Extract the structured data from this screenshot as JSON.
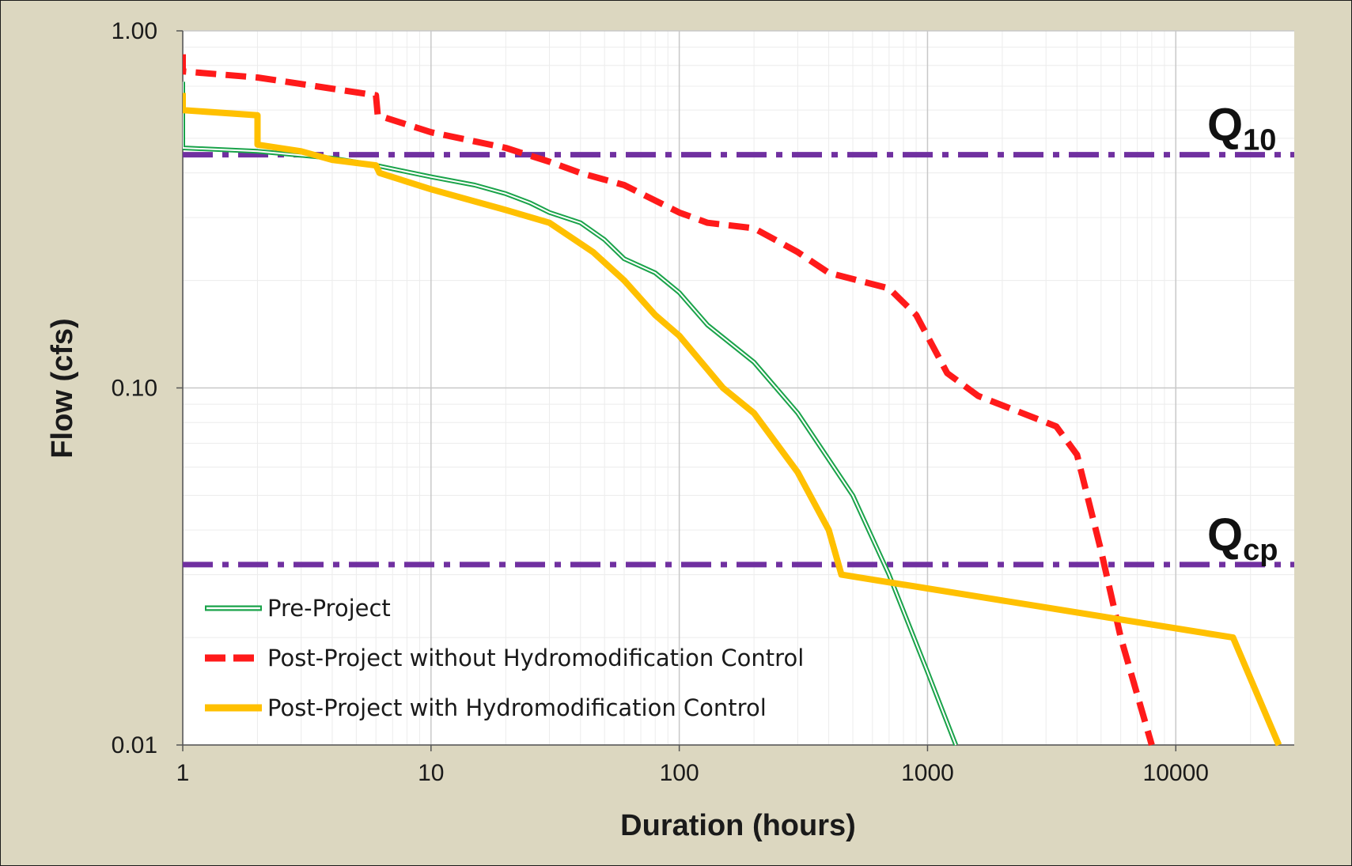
{
  "chart_data": {
    "type": "line",
    "xscale": "log",
    "yscale": "log",
    "xlim": [
      1,
      30000
    ],
    "ylim": [
      0.01,
      1.0
    ],
    "xlabel": "Duration (hours)",
    "ylabel": "Flow (cfs)",
    "x_ticks": [
      "1",
      "10",
      "100",
      "1000",
      "10000"
    ],
    "y_ticks": [
      "0.01",
      "0.10",
      "1.00"
    ],
    "grid": true,
    "legend_position": "bottom-left",
    "reference_lines": [
      {
        "name": "Q",
        "subscript": "10",
        "y": 0.45,
        "color": "#7030a0",
        "style": "dash-dot"
      },
      {
        "name": "Q",
        "subscript": "cp",
        "y": 0.032,
        "color": "#7030a0",
        "style": "dash-dot"
      }
    ],
    "series": [
      {
        "name": "Pre-Project",
        "color": "#1aa34a",
        "style": "double",
        "points": [
          [
            1,
            0.72
          ],
          [
            1,
            0.47
          ],
          [
            2,
            0.46
          ],
          [
            4,
            0.44
          ],
          [
            6,
            0.42
          ],
          [
            10,
            0.39
          ],
          [
            15,
            0.37
          ],
          [
            20,
            0.35
          ],
          [
            25,
            0.33
          ],
          [
            30,
            0.31
          ],
          [
            40,
            0.29
          ],
          [
            50,
            0.26
          ],
          [
            60,
            0.23
          ],
          [
            80,
            0.21
          ],
          [
            100,
            0.185
          ],
          [
            130,
            0.15
          ],
          [
            200,
            0.118
          ],
          [
            300,
            0.085
          ],
          [
            500,
            0.05
          ],
          [
            700,
            0.03
          ],
          [
            1000,
            0.016
          ],
          [
            1300,
            0.01
          ]
        ]
      },
      {
        "name": "Post-Project without Hydromodification Control",
        "color": "#ff1a1a",
        "style": "dashed",
        "points": [
          [
            1,
            0.86
          ],
          [
            1,
            0.77
          ],
          [
            2,
            0.74
          ],
          [
            3,
            0.71
          ],
          [
            6,
            0.66
          ],
          [
            6.1,
            0.58
          ],
          [
            10,
            0.52
          ],
          [
            20,
            0.47
          ],
          [
            30,
            0.43
          ],
          [
            40,
            0.4
          ],
          [
            60,
            0.37
          ],
          [
            100,
            0.31
          ],
          [
            130,
            0.29
          ],
          [
            200,
            0.28
          ],
          [
            300,
            0.24
          ],
          [
            400,
            0.21
          ],
          [
            700,
            0.19
          ],
          [
            900,
            0.16
          ],
          [
            1200,
            0.11
          ],
          [
            1600,
            0.095
          ],
          [
            3300,
            0.078
          ],
          [
            4000,
            0.065
          ],
          [
            5000,
            0.035
          ],
          [
            6000,
            0.02
          ],
          [
            8000,
            0.01
          ]
        ]
      },
      {
        "name": "Post-Project with Hydromodification Control",
        "color": "#ffc000",
        "style": "solid",
        "points": [
          [
            1,
            0.67
          ],
          [
            1,
            0.6
          ],
          [
            2,
            0.58
          ],
          [
            2,
            0.48
          ],
          [
            3,
            0.46
          ],
          [
            4,
            0.435
          ],
          [
            6,
            0.42
          ],
          [
            6.2,
            0.4
          ],
          [
            10,
            0.36
          ],
          [
            20,
            0.315
          ],
          [
            30,
            0.29
          ],
          [
            45,
            0.24
          ],
          [
            60,
            0.2
          ],
          [
            80,
            0.16
          ],
          [
            100,
            0.14
          ],
          [
            150,
            0.1
          ],
          [
            200,
            0.085
          ],
          [
            300,
            0.058
          ],
          [
            400,
            0.04
          ],
          [
            450,
            0.03
          ],
          [
            17000,
            0.02
          ],
          [
            26000,
            0.01
          ]
        ]
      }
    ]
  }
}
